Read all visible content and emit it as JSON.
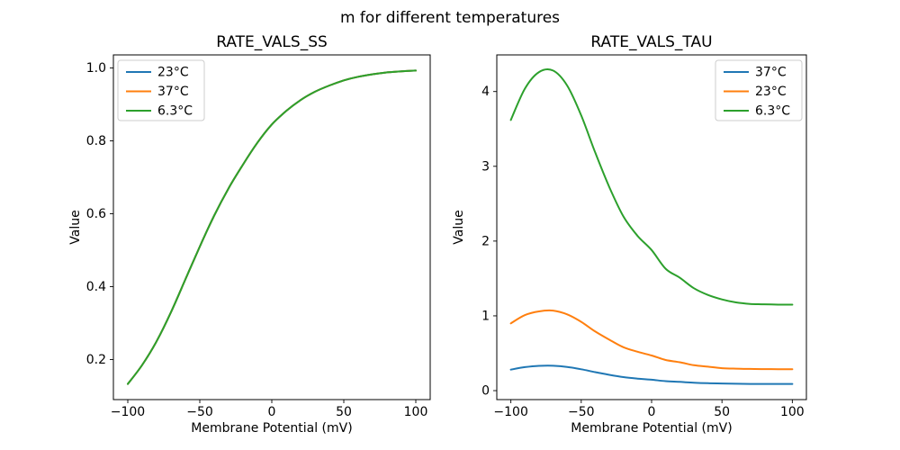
{
  "figure": {
    "suptitle": "m for different temperatures"
  },
  "palette": {
    "blue": "#1f77b4",
    "orange": "#ff7f0e",
    "green": "#2ca02c",
    "legend_border": "#cccccc",
    "axis_color": "#000000",
    "background": "#ffffff"
  },
  "chart_data": [
    {
      "type": "line",
      "title": "RATE_VALS_SS",
      "xlabel": "Membrane Potential (mV)",
      "ylabel": "Value",
      "xlim": [
        -110,
        110
      ],
      "ylim": [
        0.09,
        1.036
      ],
      "xticks": [
        -100,
        -50,
        0,
        50,
        100
      ],
      "xtick_labels": [
        "−100",
        "−50",
        "0",
        "50",
        "100"
      ],
      "yticks": [
        0.2,
        0.4,
        0.6,
        0.8,
        1.0
      ],
      "ytick_labels": [
        "0.2",
        "0.4",
        "0.6",
        "0.8",
        "1.0"
      ],
      "grid": false,
      "legend_position": "upper-left",
      "x": [
        -100,
        -90,
        -80,
        -70,
        -60,
        -50,
        -40,
        -30,
        -20,
        -10,
        0,
        10,
        20,
        30,
        40,
        50,
        60,
        70,
        80,
        90,
        100
      ],
      "series": [
        {
          "name": "23°C",
          "color": "#1f77b4",
          "values": [
            0.133,
            0.185,
            0.25,
            0.33,
            0.42,
            0.51,
            0.595,
            0.67,
            0.735,
            0.795,
            0.845,
            0.882,
            0.912,
            0.935,
            0.952,
            0.966,
            0.976,
            0.983,
            0.988,
            0.991,
            0.993
          ]
        },
        {
          "name": "37°C",
          "color": "#ff7f0e",
          "values": [
            0.133,
            0.185,
            0.25,
            0.33,
            0.42,
            0.51,
            0.595,
            0.67,
            0.735,
            0.795,
            0.845,
            0.882,
            0.912,
            0.935,
            0.952,
            0.966,
            0.976,
            0.983,
            0.988,
            0.991,
            0.993
          ]
        },
        {
          "name": "6.3°C",
          "color": "#2ca02c",
          "values": [
            0.133,
            0.185,
            0.25,
            0.33,
            0.42,
            0.51,
            0.595,
            0.67,
            0.735,
            0.795,
            0.845,
            0.882,
            0.912,
            0.935,
            0.952,
            0.966,
            0.976,
            0.983,
            0.988,
            0.991,
            0.993
          ]
        }
      ]
    },
    {
      "type": "line",
      "title": "RATE_VALS_TAU",
      "xlabel": "Membrane Potential (mV)",
      "ylabel": "Value",
      "xlim": [
        -110,
        110
      ],
      "ylim": [
        -0.12,
        4.49
      ],
      "xticks": [
        -100,
        -50,
        0,
        50,
        100
      ],
      "xtick_labels": [
        "−100",
        "−50",
        "0",
        "50",
        "100"
      ],
      "yticks": [
        0,
        1,
        2,
        3,
        4
      ],
      "ytick_labels": [
        "0",
        "1",
        "2",
        "3",
        "4"
      ],
      "grid": false,
      "legend_position": "upper-right",
      "x": [
        -100,
        -90,
        -80,
        -70,
        -60,
        -50,
        -40,
        -30,
        -20,
        -10,
        0,
        10,
        20,
        30,
        40,
        50,
        60,
        70,
        80,
        90,
        100
      ],
      "series": [
        {
          "name": "37°C",
          "color": "#1f77b4",
          "values": [
            0.281,
            0.314,
            0.331,
            0.333,
            0.317,
            0.286,
            0.247,
            0.211,
            0.181,
            0.161,
            0.146,
            0.127,
            0.117,
            0.106,
            0.099,
            0.095,
            0.092,
            0.09,
            0.089,
            0.089,
            0.089
          ]
        },
        {
          "name": "23°C",
          "color": "#ff7f0e",
          "values": [
            0.9,
            1.01,
            1.06,
            1.07,
            1.02,
            0.92,
            0.79,
            0.68,
            0.58,
            0.52,
            0.47,
            0.41,
            0.38,
            0.34,
            0.32,
            0.3,
            0.294,
            0.29,
            0.288,
            0.287,
            0.287
          ]
        },
        {
          "name": "6.3°C",
          "color": "#2ca02c",
          "values": [
            3.62,
            4.04,
            4.26,
            4.28,
            4.08,
            3.68,
            3.18,
            2.72,
            2.33,
            2.07,
            1.88,
            1.63,
            1.51,
            1.37,
            1.28,
            1.22,
            1.18,
            1.16,
            1.155,
            1.15,
            1.15
          ]
        }
      ]
    }
  ]
}
